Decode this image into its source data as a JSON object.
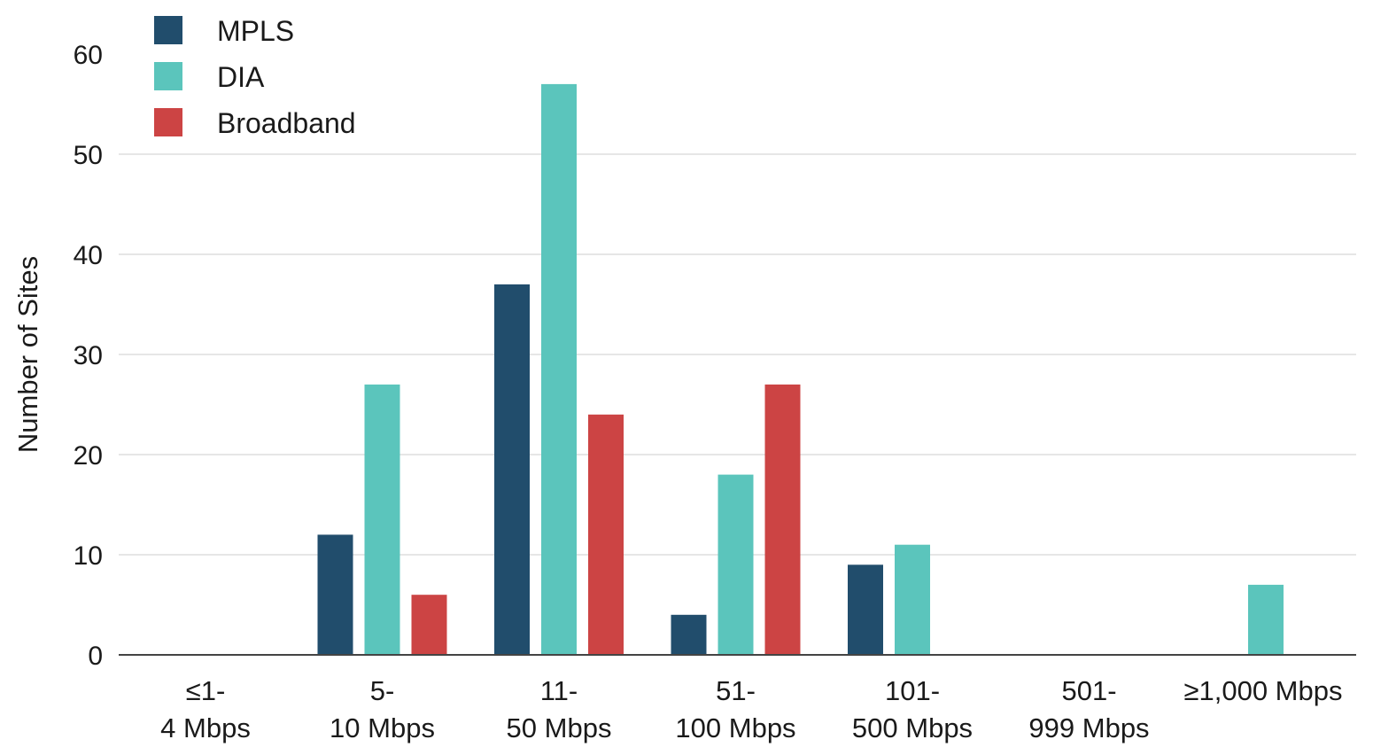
{
  "chart_data": {
    "type": "bar",
    "title": "",
    "xlabel": "",
    "ylabel": "Number of Sites",
    "ylim": [
      0,
      60
    ],
    "yticks": [
      0,
      10,
      20,
      30,
      40,
      50,
      60
    ],
    "grid": true,
    "legend_position": "top-left",
    "categories": [
      [
        "≤1-",
        "4 Mbps"
      ],
      [
        "5-",
        "10 Mbps"
      ],
      [
        "11-",
        "50 Mbps"
      ],
      [
        "51-",
        "100 Mbps"
      ],
      [
        "101-",
        "500 Mbps"
      ],
      [
        "501-",
        "999 Mbps"
      ],
      [
        "≥1,000 Mbps"
      ]
    ],
    "series": [
      {
        "name": "MPLS",
        "color": "#214d6c",
        "values": [
          0,
          12,
          37,
          4,
          9,
          0,
          0
        ]
      },
      {
        "name": "DIA",
        "color": "#5bc5bc",
        "values": [
          0,
          27,
          57,
          18,
          11,
          0,
          7
        ]
      },
      {
        "name": "Broadband",
        "color": "#cc4444",
        "values": [
          0,
          6,
          24,
          27,
          0,
          0,
          0
        ]
      }
    ]
  }
}
